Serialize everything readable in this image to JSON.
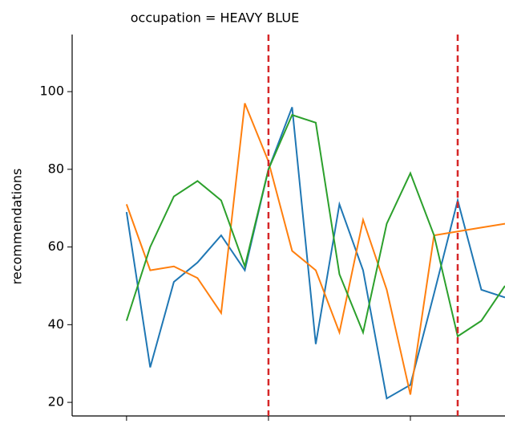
{
  "chart_data": {
    "type": "line",
    "title": "occupation = HEAVY BLUE",
    "ylabel": "recommendations",
    "x": [
      0,
      1,
      2,
      3,
      4,
      5,
      6,
      7,
      8,
      9,
      10,
      11,
      12,
      13,
      14,
      15,
      16
    ],
    "series": [
      {
        "color": "#1f77b4",
        "values": [
          69,
          29,
          51,
          56,
          63,
          54,
          80,
          96,
          35,
          71,
          54,
          21,
          24.5,
          48,
          72,
          49,
          47
        ]
      },
      {
        "color": "#ff7f0e",
        "values": [
          71,
          54,
          55,
          52,
          43,
          97,
          82,
          59,
          54,
          38,
          67,
          49,
          22,
          63,
          64,
          65,
          66
        ]
      },
      {
        "color": "#2ca02c",
        "values": [
          41,
          60,
          73,
          77,
          72,
          55,
          80,
          94,
          92,
          53,
          38,
          66,
          79,
          63,
          37,
          41,
          50
        ]
      }
    ],
    "xlim": [
      -2.3,
      16
    ],
    "xticks": [
      0,
      6,
      12
    ],
    "ylim": [
      16.5,
      114.7
    ],
    "yticks": [
      20,
      40,
      60,
      80,
      100
    ],
    "vlines": [
      6,
      14
    ],
    "vline_color": "#d62728"
  }
}
